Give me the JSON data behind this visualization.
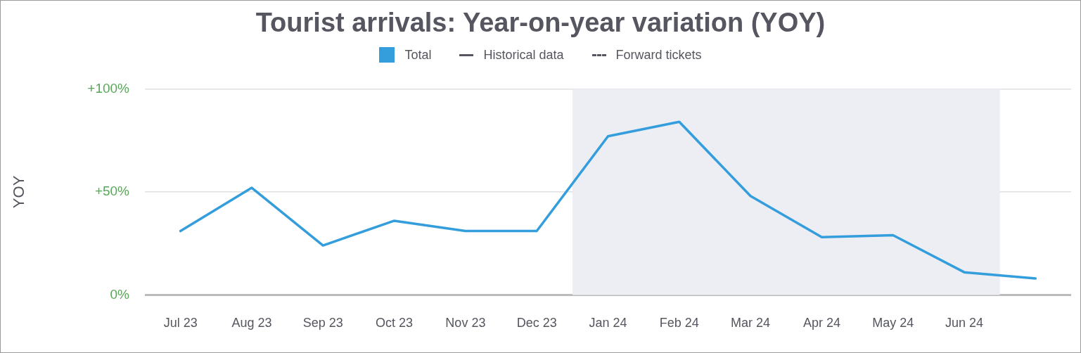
{
  "chart_data": {
    "type": "line",
    "title": "Tourist arrivals: Year-on-year variation (YOY)",
    "ylabel": "YOY",
    "categories": [
      "Jul 23",
      "Aug 23",
      "Sep 23",
      "Oct 23",
      "Nov 23",
      "Dec 23",
      "Jan 24",
      "Feb 24",
      "Mar 24",
      "Apr 24",
      "May 24",
      "Jun 24",
      null
    ],
    "series": [
      {
        "name": "Total",
        "color": "#349ddc",
        "values": [
          31,
          52,
          24,
          36,
          31,
          31,
          77,
          84,
          48,
          28,
          29,
          11,
          8
        ]
      }
    ],
    "ylim": [
      0,
      100
    ],
    "yticks": [
      {
        "value": 0,
        "label": "0%"
      },
      {
        "value": 50,
        "label": "+50%"
      },
      {
        "value": 100,
        "label": "+100%"
      }
    ],
    "bands": [
      {
        "axis": "x",
        "from": "Jan 24",
        "to": "Jun 24",
        "color": "#eceef4"
      }
    ],
    "annotations": [
      "Historical data",
      "Forward tickets"
    ],
    "grid": "y",
    "legend": "top",
    "marker": "none",
    "line_style": "solid"
  }
}
